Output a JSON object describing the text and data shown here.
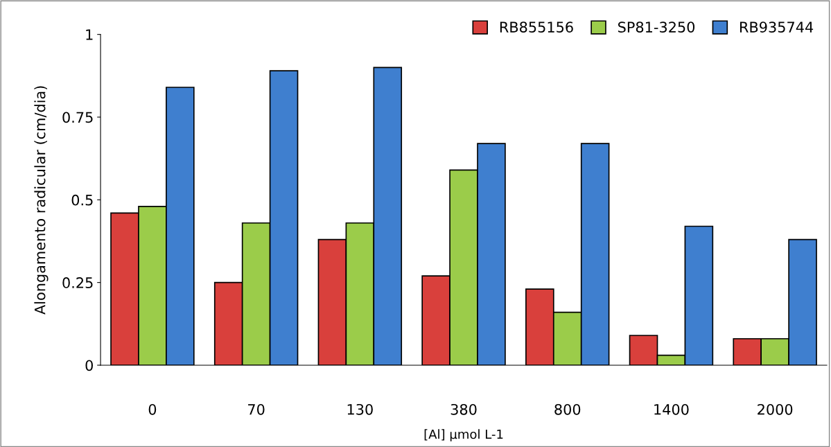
{
  "chart_data": {
    "type": "bar",
    "xlabel": "[Al] µmol L-1",
    "ylabel": "Alongamento radicular (cm/dia)",
    "categories": [
      "0",
      "70",
      "130",
      "380",
      "800",
      "1400",
      "2000"
    ],
    "series": [
      {
        "name": "RB855156",
        "color": "#d9403c",
        "values": [
          0.46,
          0.25,
          0.38,
          0.27,
          0.23,
          0.09,
          0.08
        ]
      },
      {
        "name": "SP81-3250",
        "color": "#9bcc4a",
        "values": [
          0.48,
          0.43,
          0.43,
          0.59,
          0.16,
          0.03,
          0.08
        ]
      },
      {
        "name": "RB935744",
        "color": "#3f7fcf",
        "values": [
          0.84,
          0.89,
          0.9,
          0.67,
          0.67,
          0.42,
          0.38
        ]
      }
    ],
    "ylim": [
      0,
      1
    ],
    "yticks": [
      0,
      0.25,
      0.5,
      0.75,
      1
    ],
    "grid": false,
    "legend": "top right"
  }
}
